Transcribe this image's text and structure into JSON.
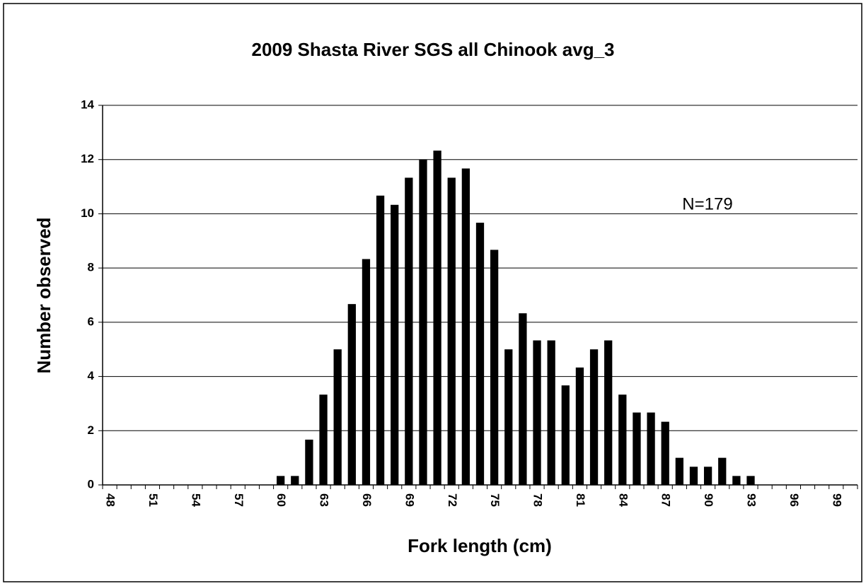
{
  "chart_data": {
    "type": "bar",
    "title": "2009 Shasta River SGS all Chinook avg_3",
    "x_label": "Fork length (cm)",
    "y_label": "Number observed",
    "annotation": "N=179",
    "categories": [
      "48",
      null,
      null,
      "51",
      null,
      null,
      "54",
      null,
      null,
      "57",
      null,
      null,
      "60",
      null,
      null,
      "63",
      null,
      null,
      "66",
      null,
      null,
      "69",
      null,
      null,
      "72",
      null,
      null,
      "75",
      null,
      null,
      "78",
      null,
      null,
      "81",
      null,
      null,
      "84",
      null,
      null,
      "87",
      null,
      null,
      "90",
      null,
      null,
      "93",
      null,
      null,
      "96",
      null,
      null,
      "99",
      null
    ],
    "values": [
      0,
      0,
      0,
      0,
      0,
      0,
      0,
      0,
      0,
      0,
      0,
      0,
      0.33,
      0.33,
      1.67,
      3.33,
      5,
      6.67,
      8.33,
      10.67,
      10.33,
      11.33,
      12,
      12.33,
      11.33,
      11.67,
      9.67,
      8.67,
      5,
      6.33,
      5.33,
      5.33,
      3.67,
      4.33,
      5,
      5.33,
      3.33,
      2.67,
      2.67,
      2.33,
      1,
      0.67,
      0.67,
      1,
      0.33,
      0.33,
      0,
      0,
      0,
      0,
      0,
      0,
      0
    ],
    "color": "#000000",
    "ylim": [
      0,
      14
    ],
    "yticks": [
      0,
      2,
      4,
      6,
      8,
      10,
      12,
      14
    ],
    "grid": true
  }
}
